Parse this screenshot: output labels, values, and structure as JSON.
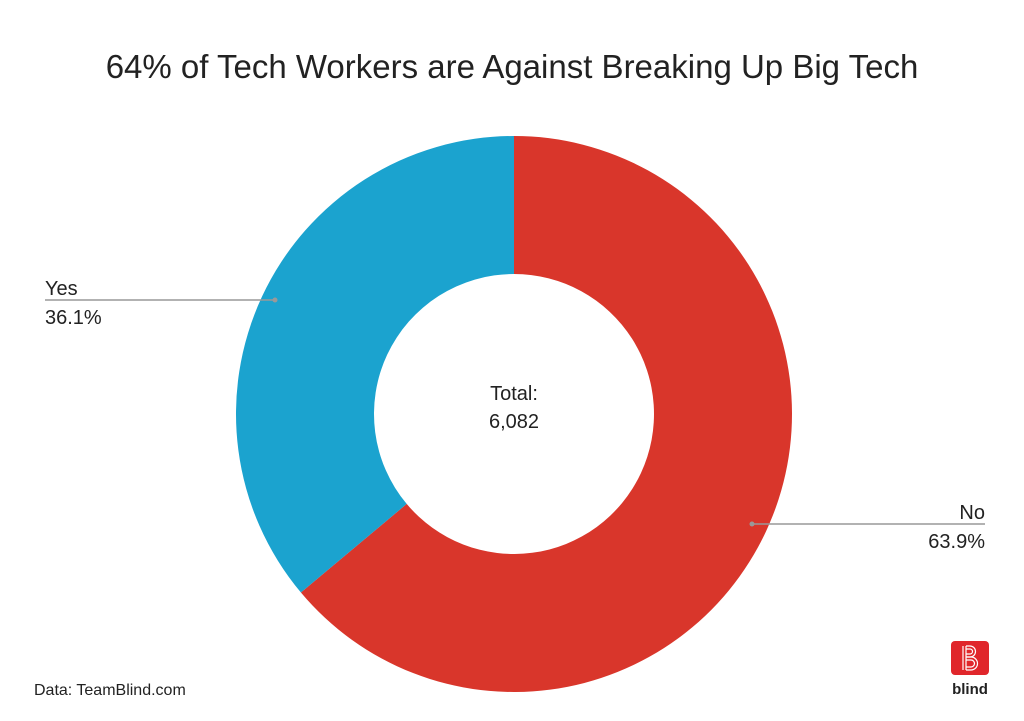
{
  "chart_data": {
    "type": "pie",
    "donut": true,
    "title": "64% of Tech Workers are Against Breaking Up Big Tech",
    "center_label": [
      "Total:",
      "6,082"
    ],
    "slices": [
      {
        "label": "No",
        "value": 63.9,
        "display": "63.9%",
        "color": "#d9362b"
      },
      {
        "label": "Yes",
        "value": 36.1,
        "display": "36.1%",
        "color": "#1ba3cf"
      }
    ],
    "source": "Data: TeamBlind.com"
  },
  "logo": {
    "text": "blind",
    "color": "#e0262b"
  }
}
